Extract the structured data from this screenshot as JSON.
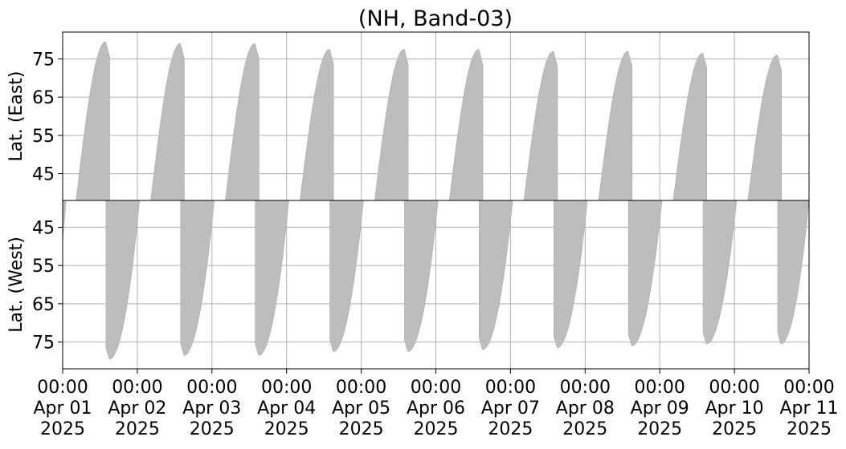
{
  "chart_data": {
    "type": "heatmap",
    "title": "(NH, Band-03)",
    "x_ticks": [
      {
        "time": "00:00",
        "date": "Apr 01",
        "year": "2025",
        "day": 0
      },
      {
        "time": "00:00",
        "date": "Apr 02",
        "year": "2025",
        "day": 1
      },
      {
        "time": "00:00",
        "date": "Apr 03",
        "year": "2025",
        "day": 2
      },
      {
        "time": "00:00",
        "date": "Apr 04",
        "year": "2025",
        "day": 3
      },
      {
        "time": "00:00",
        "date": "Apr 05",
        "year": "2025",
        "day": 4
      },
      {
        "time": "00:00",
        "date": "Apr 06",
        "year": "2025",
        "day": 5
      },
      {
        "time": "00:00",
        "date": "Apr 07",
        "year": "2025",
        "day": 6
      },
      {
        "time": "00:00",
        "date": "Apr 08",
        "year": "2025",
        "day": 7
      },
      {
        "time": "00:00",
        "date": "Apr 09",
        "year": "2025",
        "day": 8
      },
      {
        "time": "00:00",
        "date": "Apr 10",
        "year": "2025",
        "day": 9
      },
      {
        "time": "00:00",
        "date": "Apr 11",
        "year": "2025",
        "day": 10
      }
    ],
    "xlim_days": [
      0,
      10
    ],
    "fill_color": "#bdbdbd",
    "grid": true,
    "panels": [
      {
        "name": "east",
        "ylabel": "Lat. (East)",
        "yticks": [
          45,
          55,
          65,
          75
        ],
        "ylim": [
          82,
          38
        ],
        "inverted": true,
        "passes": [
          {
            "start": 0.18,
            "end": 0.63,
            "max_lat": 79.5,
            "base_lat": 38
          },
          {
            "start": 1.18,
            "end": 1.63,
            "max_lat": 79.0,
            "base_lat": 38
          },
          {
            "start": 2.18,
            "end": 2.63,
            "max_lat": 79.0,
            "base_lat": 38
          },
          {
            "start": 3.18,
            "end": 3.63,
            "max_lat": 77.5,
            "base_lat": 38
          },
          {
            "start": 4.18,
            "end": 4.63,
            "max_lat": 77.5,
            "base_lat": 38
          },
          {
            "start": 5.18,
            "end": 5.63,
            "max_lat": 77.5,
            "base_lat": 38
          },
          {
            "start": 6.18,
            "end": 6.63,
            "max_lat": 77.0,
            "base_lat": 38
          },
          {
            "start": 7.18,
            "end": 7.63,
            "max_lat": 77.0,
            "base_lat": 38
          },
          {
            "start": 8.18,
            "end": 8.63,
            "max_lat": 76.5,
            "base_lat": 38
          },
          {
            "start": 9.18,
            "end": 9.63,
            "max_lat": 76.0,
            "base_lat": 38
          }
        ]
      },
      {
        "name": "west",
        "ylabel": "Lat. (West)",
        "yticks": [
          45,
          55,
          65,
          75
        ],
        "ylim": [
          38,
          82
        ],
        "inverted": false,
        "passes": [
          {
            "start": 0.58,
            "end": 1.03,
            "max_lat": 79.5,
            "base_lat": 38
          },
          {
            "start": 1.58,
            "end": 2.03,
            "max_lat": 78.5,
            "base_lat": 38
          },
          {
            "start": 2.58,
            "end": 3.03,
            "max_lat": 78.5,
            "base_lat": 38
          },
          {
            "start": 3.58,
            "end": 4.03,
            "max_lat": 77.5,
            "base_lat": 38
          },
          {
            "start": 4.58,
            "end": 5.03,
            "max_lat": 77.5,
            "base_lat": 38
          },
          {
            "start": 5.58,
            "end": 6.03,
            "max_lat": 77.0,
            "base_lat": 38
          },
          {
            "start": 6.58,
            "end": 7.03,
            "max_lat": 76.5,
            "base_lat": 38
          },
          {
            "start": 7.58,
            "end": 8.03,
            "max_lat": 76.0,
            "base_lat": 38
          },
          {
            "start": 8.58,
            "end": 9.03,
            "max_lat": 75.5,
            "base_lat": 38
          },
          {
            "start": 9.58,
            "end": 10.0,
            "max_lat": 75.5,
            "base_lat": 38
          }
        ],
        "leading_fragment": {
          "start": 0.0,
          "end": 0.05,
          "max_lat": 50,
          "base_lat": 38
        }
      }
    ]
  }
}
